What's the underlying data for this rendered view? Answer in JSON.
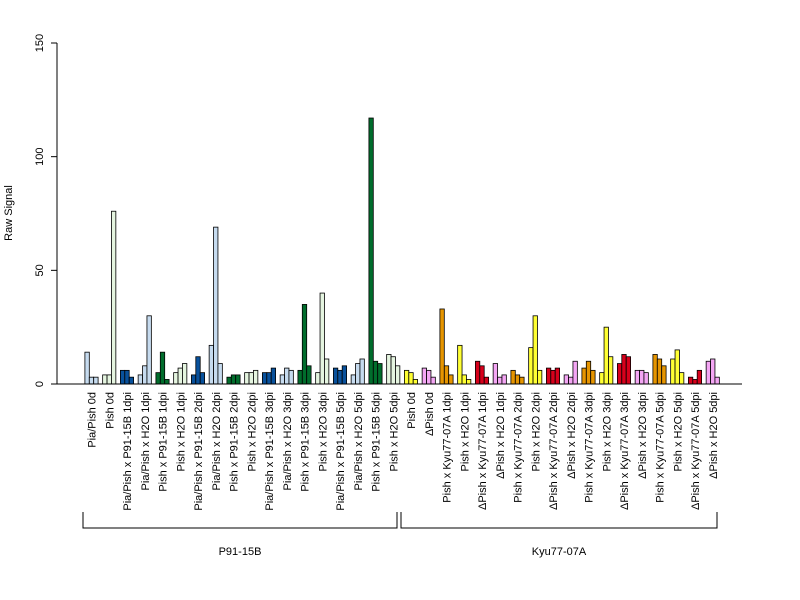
{
  "chart_data": {
    "type": "bar",
    "ylabel": "Raw Signal",
    "ylim": [
      0,
      150
    ],
    "yticks": [
      0,
      50,
      100,
      150
    ],
    "bars_per_category": 3,
    "categories": [
      {
        "label": "Pia/Pish 0d",
        "color": "#c6dbef",
        "values": [
          14,
          3,
          3
        ]
      },
      {
        "label": "Pish 0d",
        "color": "#e5f5e0",
        "values": [
          4,
          4,
          76
        ]
      },
      {
        "label": "Pia/Pish x P91-15B 1dpi",
        "color": "#08519c",
        "values": [
          6,
          6,
          3
        ]
      },
      {
        "label": "Pia/Pish x H2O 1dpi",
        "color": "#c6dbef",
        "values": [
          4,
          8,
          30
        ]
      },
      {
        "label": "Pish x P91-15B 1dpi",
        "color": "#006d2c",
        "values": [
          5,
          14,
          2
        ]
      },
      {
        "label": "Pish x H2O 1dpi",
        "color": "#e5f5e0",
        "values": [
          5,
          7,
          9
        ]
      },
      {
        "label": "Pia/Pish x P91-15B 2dpi",
        "color": "#08519c",
        "values": [
          4,
          12,
          5
        ]
      },
      {
        "label": "Pia/Pish x H2O 2dpi",
        "color": "#c6dbef",
        "values": [
          17,
          69,
          9
        ]
      },
      {
        "label": "Pish x P91-15B 2dpi",
        "color": "#006d2c",
        "values": [
          3,
          4,
          4
        ]
      },
      {
        "label": "Pish x H2O 2dpi",
        "color": "#e5f5e0",
        "values": [
          5,
          5,
          6
        ]
      },
      {
        "label": "Pia/Pish x P91-15B 3dpi",
        "color": "#08519c",
        "values": [
          5,
          5,
          7
        ]
      },
      {
        "label": "Pia/Pish x H2O 3dpi",
        "color": "#c6dbef",
        "values": [
          4,
          7,
          6
        ]
      },
      {
        "label": "Pish x P91-15B 3dpi",
        "color": "#006d2c",
        "values": [
          6,
          35,
          8
        ]
      },
      {
        "label": "Pish x H2O 3dpi",
        "color": "#e5f5e0",
        "values": [
          5,
          40,
          11
        ]
      },
      {
        "label": "Pia/Pish x P91-15B 5dpi",
        "color": "#08519c",
        "values": [
          7,
          6,
          8
        ]
      },
      {
        "label": "Pia/Pish x H2O 5dpi",
        "color": "#c6dbef",
        "values": [
          4,
          9,
          11
        ]
      },
      {
        "label": "Pish x P91-15B 5dpi",
        "color": "#006d2c",
        "values": [
          117,
          10,
          9
        ]
      },
      {
        "label": "Pish x H2O 5dpi",
        "color": "#e5f5e0",
        "values": [
          13,
          12,
          8
        ]
      },
      {
        "label": "Pish 0d",
        "color": "#ffff33",
        "values": [
          6,
          5,
          2
        ]
      },
      {
        "label": "ΔPish 0d",
        "color": "#f4a6f4",
        "values": [
          7,
          6,
          3
        ]
      },
      {
        "label": "Pish x Kyu77-07A 1dpi",
        "color": "#e69500",
        "values": [
          33,
          8,
          4
        ]
      },
      {
        "label": "Pish x H2O 1dpi",
        "color": "#ffff33",
        "values": [
          17,
          4,
          2
        ]
      },
      {
        "label": "ΔPish x Kyu77-07A 1dpi",
        "color": "#d7001b",
        "values": [
          10,
          8,
          3
        ]
      },
      {
        "label": "ΔPish x H2O 1dpi",
        "color": "#f4a6f4",
        "values": [
          9,
          3,
          4
        ]
      },
      {
        "label": "Pish x Kyu77-07A 2dpi",
        "color": "#e69500",
        "values": [
          6,
          4,
          3
        ]
      },
      {
        "label": "Pish x H2O 2dpi",
        "color": "#ffff33",
        "values": [
          16,
          30,
          6
        ]
      },
      {
        "label": "ΔPish x Kyu77-07A 2dpi",
        "color": "#d7001b",
        "values": [
          7,
          6,
          7
        ]
      },
      {
        "label": "ΔPish x H2O 2dpi",
        "color": "#f4a6f4",
        "values": [
          4,
          3,
          10
        ]
      },
      {
        "label": "Pish x Kyu77-07A 3dpi",
        "color": "#e69500",
        "values": [
          7,
          10,
          6
        ]
      },
      {
        "label": "Pish x H2O 3dpi",
        "color": "#ffff33",
        "values": [
          5,
          25,
          12
        ]
      },
      {
        "label": "ΔPish x Kyu77-07A 3dpi",
        "color": "#d7001b",
        "values": [
          9,
          13,
          12
        ]
      },
      {
        "label": "ΔPish x H2O 3dpi",
        "color": "#f4a6f4",
        "values": [
          6,
          6,
          5
        ]
      },
      {
        "label": "Pish x Kyu77-07A 5dpi",
        "color": "#e69500",
        "values": [
          13,
          11,
          8
        ]
      },
      {
        "label": "Pish x H2O 5dpi",
        "color": "#ffff33",
        "values": [
          11,
          15,
          5
        ]
      },
      {
        "label": "ΔPish x Kyu77-07A 5dpi",
        "color": "#d7001b",
        "values": [
          3,
          2,
          6
        ]
      },
      {
        "label": "ΔPish x H2O 5dpi",
        "color": "#f4a6f4",
        "values": [
          10,
          11,
          3
        ]
      }
    ],
    "groups": [
      {
        "label": "P91-15B",
        "first": 0,
        "last": 17
      },
      {
        "label": "Kyu77-07A",
        "first": 18,
        "last": 35
      }
    ]
  }
}
